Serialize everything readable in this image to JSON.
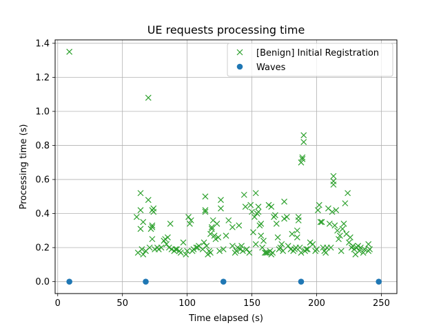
{
  "chart_data": {
    "type": "scatter",
    "title": "UE requests processing time",
    "xlabel": "Time elapsed (s)",
    "ylabel": "Processing time (s)",
    "xlim": [
      -2,
      262
    ],
    "ylim": [
      -0.07,
      1.42
    ],
    "xticks": [
      0,
      50,
      100,
      150,
      200,
      250
    ],
    "yticks": [
      0.0,
      0.2,
      0.4,
      0.6,
      0.8,
      1.0,
      1.2,
      1.4
    ],
    "xtick_labels": [
      "0",
      "50",
      "100",
      "150",
      "200",
      "250"
    ],
    "ytick_labels": [
      "0.0",
      "0.2",
      "0.4",
      "0.6",
      "0.8",
      "1.0",
      "1.2",
      "1.4"
    ],
    "grid": true,
    "legend_position": "top-right",
    "series": [
      {
        "name": "[Benign] Initial Registration",
        "marker": "x",
        "color": "#2ca02c",
        "points": [
          [
            9,
            1.35
          ],
          [
            70,
            1.08
          ],
          [
            61,
            0.38
          ],
          [
            62,
            0.17
          ],
          [
            64,
            0.52
          ],
          [
            64,
            0.42
          ],
          [
            64,
            0.31
          ],
          [
            65,
            0.19
          ],
          [
            66,
            0.35
          ],
          [
            66,
            0.16
          ],
          [
            68,
            0.18
          ],
          [
            70,
            0.48
          ],
          [
            71,
            0.2
          ],
          [
            72,
            0.31
          ],
          [
            73,
            0.33
          ],
          [
            73,
            0.25
          ],
          [
            73,
            0.32
          ],
          [
            73,
            0.42
          ],
          [
            74,
            0.43
          ],
          [
            74,
            0.41
          ],
          [
            75,
            0.19
          ],
          [
            77,
            0.2
          ],
          [
            78,
            0.19
          ],
          [
            80,
            0.2
          ],
          [
            82,
            0.24
          ],
          [
            83,
            0.25
          ],
          [
            84,
            0.22
          ],
          [
            85,
            0.26
          ],
          [
            86,
            0.2
          ],
          [
            87,
            0.34
          ],
          [
            88,
            0.19
          ],
          [
            90,
            0.18
          ],
          [
            91,
            0.19
          ],
          [
            92,
            0.19
          ],
          [
            94,
            0.18
          ],
          [
            95,
            0.17
          ],
          [
            97,
            0.23
          ],
          [
            99,
            0.16
          ],
          [
            100,
            0.18
          ],
          [
            101,
            0.38
          ],
          [
            102,
            0.34
          ],
          [
            103,
            0.36
          ],
          [
            104,
            0.18
          ],
          [
            105,
            0.19
          ],
          [
            107,
            0.2
          ],
          [
            108,
            0.2
          ],
          [
            109,
            0.21
          ],
          [
            112,
            0.19
          ],
          [
            113,
            0.23
          ],
          [
            114,
            0.42
          ],
          [
            114,
            0.41
          ],
          [
            114,
            0.5
          ],
          [
            115,
            0.21
          ],
          [
            116,
            0.16
          ],
          [
            117,
            0.18
          ],
          [
            118,
            0.17
          ],
          [
            118,
            0.28
          ],
          [
            119,
            0.32
          ],
          [
            119,
            0.31
          ],
          [
            120,
            0.36
          ],
          [
            121,
            0.27
          ],
          [
            122,
            0.25
          ],
          [
            123,
            0.34
          ],
          [
            124,
            0.26
          ],
          [
            125,
            0.18
          ],
          [
            126,
            0.43
          ],
          [
            126,
            0.48
          ],
          [
            128,
            0.19
          ],
          [
            130,
            0.27
          ],
          [
            132,
            0.36
          ],
          [
            135,
            0.21
          ],
          [
            135,
            0.32
          ],
          [
            137,
            0.17
          ],
          [
            138,
            0.18
          ],
          [
            139,
            0.2
          ],
          [
            140,
            0.33
          ],
          [
            141,
            0.19
          ],
          [
            142,
            0.21
          ],
          [
            143,
            0.18
          ],
          [
            144,
            0.51
          ],
          [
            145,
            0.44
          ],
          [
            146,
            0.19
          ],
          [
            148,
            0.17
          ],
          [
            149,
            0.45
          ],
          [
            150,
            0.41
          ],
          [
            151,
            0.29
          ],
          [
            152,
            0.38
          ],
          [
            153,
            0.22
          ],
          [
            153,
            0.52
          ],
          [
            154,
            0.4
          ],
          [
            155,
            0.44
          ],
          [
            155,
            0.41
          ],
          [
            156,
            0.33
          ],
          [
            157,
            0.34
          ],
          [
            157,
            0.27
          ],
          [
            158,
            0.2
          ],
          [
            159,
            0.24
          ],
          [
            160,
            0.17
          ],
          [
            161,
            0.17
          ],
          [
            162,
            0.17
          ],
          [
            163,
            0.45
          ],
          [
            164,
            0.18
          ],
          [
            165,
            0.16
          ],
          [
            165,
            0.44
          ],
          [
            166,
            0.17
          ],
          [
            167,
            0.38
          ],
          [
            168,
            0.39
          ],
          [
            169,
            0.34
          ],
          [
            170,
            0.26
          ],
          [
            171,
            0.19
          ],
          [
            172,
            0.2
          ],
          [
            173,
            0.22
          ],
          [
            174,
            0.18
          ],
          [
            175,
            0.37
          ],
          [
            175,
            0.47
          ],
          [
            177,
            0.38
          ],
          [
            178,
            0.21
          ],
          [
            180,
            0.19
          ],
          [
            181,
            0.28
          ],
          [
            182,
            0.18
          ],
          [
            183,
            0.19
          ],
          [
            184,
            0.2
          ],
          [
            185,
            0.3
          ],
          [
            185,
            0.26
          ],
          [
            186,
            0.36
          ],
          [
            186,
            0.38
          ],
          [
            187,
            0.2
          ],
          [
            188,
            0.17
          ],
          [
            188,
            0.7
          ],
          [
            189,
            0.73
          ],
          [
            189,
            0.72
          ],
          [
            190,
            0.86
          ],
          [
            190,
            0.82
          ],
          [
            191,
            0.18
          ],
          [
            192,
            0.19
          ],
          [
            193,
            0.19
          ],
          [
            195,
            0.23
          ],
          [
            197,
            0.22
          ],
          [
            199,
            0.18
          ],
          [
            200,
            0.19
          ],
          [
            201,
            0.42
          ],
          [
            202,
            0.45
          ],
          [
            203,
            0.35
          ],
          [
            204,
            0.35
          ],
          [
            205,
            0.2
          ],
          [
            206,
            0.18
          ],
          [
            207,
            0.17
          ],
          [
            208,
            0.2
          ],
          [
            209,
            0.43
          ],
          [
            210,
            0.34
          ],
          [
            211,
            0.2
          ],
          [
            212,
            0.41
          ],
          [
            213,
            0.62
          ],
          [
            213,
            0.59
          ],
          [
            213,
            0.57
          ],
          [
            214,
            0.33
          ],
          [
            215,
            0.42
          ],
          [
            216,
            0.3
          ],
          [
            217,
            0.25
          ],
          [
            218,
            0.27
          ],
          [
            219,
            0.18
          ],
          [
            220,
            0.31
          ],
          [
            221,
            0.34
          ],
          [
            222,
            0.46
          ],
          [
            223,
            0.28
          ],
          [
            224,
            0.52
          ],
          [
            225,
            0.23
          ],
          [
            226,
            0.26
          ],
          [
            227,
            0.2
          ],
          [
            228,
            0.21
          ],
          [
            229,
            0.19
          ],
          [
            230,
            0.16
          ],
          [
            231,
            0.2
          ],
          [
            232,
            0.21
          ],
          [
            233,
            0.18
          ],
          [
            234,
            0.2
          ],
          [
            236,
            0.17
          ],
          [
            237,
            0.19
          ],
          [
            240,
            0.18
          ],
          [
            240,
            0.22
          ],
          [
            241,
            0.19
          ]
        ]
      },
      {
        "name": "Waves",
        "marker": "o",
        "color": "#1f77b4",
        "points": [
          [
            9,
            0.0
          ],
          [
            68,
            0.0
          ],
          [
            128,
            0.0
          ],
          [
            188,
            0.0
          ],
          [
            248,
            0.0
          ]
        ]
      }
    ]
  }
}
